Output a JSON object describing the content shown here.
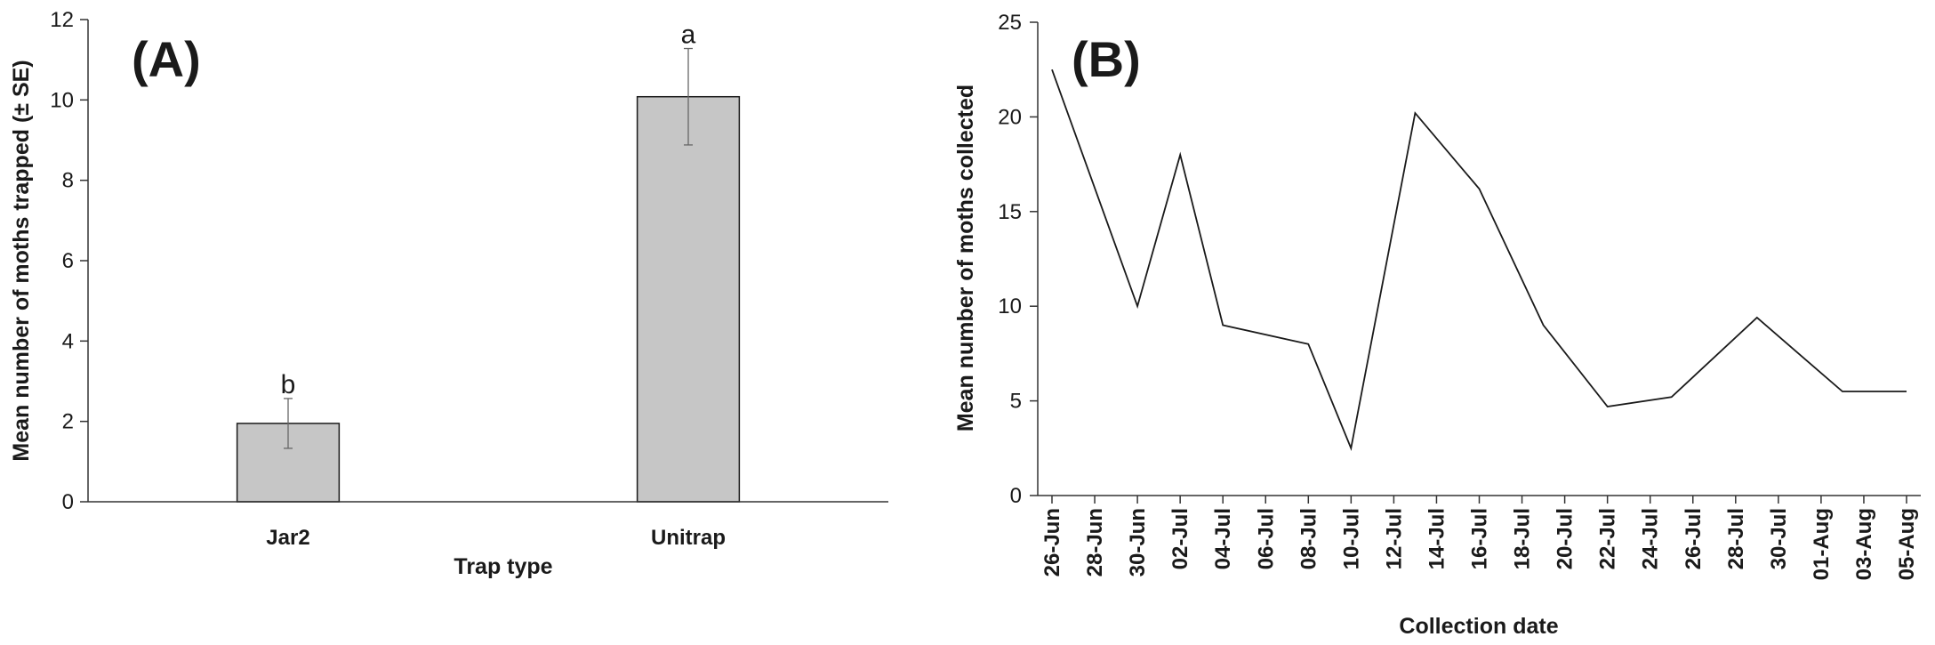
{
  "chart_data": [
    {
      "type": "bar",
      "panel_label": "(A)",
      "xlabel": "Trap type",
      "ylabel": "Mean number of moths trapped (± SE)",
      "ylim": [
        0,
        12
      ],
      "yticks": [
        0,
        2,
        4,
        6,
        8,
        10,
        12
      ],
      "categories": [
        "Jar2",
        "Unitrap"
      ],
      "values": [
        1.95,
        10.08
      ],
      "errors": [
        0.62,
        1.2
      ],
      "significance": [
        "b",
        "a"
      ],
      "bar_color": "#c6c6c6",
      "grid": false,
      "legend": "none"
    },
    {
      "type": "line",
      "panel_label": "(B)",
      "xlabel": "Collection date",
      "ylabel": "Mean number of moths collected",
      "ylim": [
        0,
        25
      ],
      "yticks": [
        0,
        5,
        10,
        15,
        20,
        25
      ],
      "x": [
        "26-Jun",
        "28-Jun",
        "30-Jun",
        "02-Jul",
        "04-Jul",
        "06-Jul",
        "08-Jul",
        "10-Jul",
        "12-Jul",
        "14-Jul",
        "16-Jul",
        "18-Jul",
        "20-Jul",
        "22-Jul",
        "24-Jul",
        "26-Jul",
        "28-Jul",
        "30-Jul",
        "01-Aug",
        "03-Aug",
        "05-Aug"
      ],
      "series": [
        {
          "points": [
            {
              "x": "26-Jun",
              "y": 22.5
            },
            {
              "x": "30-Jun",
              "y": 10.0
            },
            {
              "x": "02-Jul",
              "y": 18.0
            },
            {
              "x": "04-Jul",
              "y": 9.0
            },
            {
              "x": "08-Jul",
              "y": 8.0
            },
            {
              "x": "10-Jul",
              "y": 2.5
            },
            {
              "x": "13-Jul",
              "y": 20.2
            },
            {
              "x": "16-Jul",
              "y": 16.2
            },
            {
              "x": "19-Jul",
              "y": 9.0
            },
            {
              "x": "22-Jul",
              "y": 4.7
            },
            {
              "x": "25-Jul",
              "y": 5.2
            },
            {
              "x": "29-Jul",
              "y": 9.4
            },
            {
              "x": "02-Aug",
              "y": 5.5
            },
            {
              "x": "05-Aug",
              "y": 5.5
            }
          ]
        }
      ],
      "line_color": "#1a1a1a",
      "grid": false,
      "legend": "none"
    }
  ]
}
